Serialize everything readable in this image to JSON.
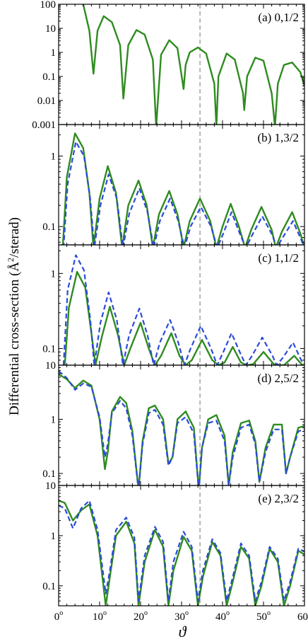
{
  "figure": {
    "ylabel_main": "Differential cross-section (Å",
    "ylabel_sup": "2",
    "ylabel_tail": "/sterad)",
    "xlabel": "ϑ",
    "vline_x": 34.5,
    "x_ticks": [
      {
        "v": 0,
        "label": "0"
      },
      {
        "v": 10,
        "label": "10"
      },
      {
        "v": 20,
        "label": "20"
      },
      {
        "v": 30,
        "label": "30"
      },
      {
        "v": 40,
        "label": "40"
      },
      {
        "v": 50,
        "label": "50"
      },
      {
        "v": 60,
        "label": "60"
      }
    ],
    "x_tick_suffix": "o",
    "colors": {
      "solid": "#2e8b1f",
      "dashed": "#2c4bd8",
      "vline": "#8a8a8a",
      "axis": "#000000"
    }
  },
  "chart_data": [
    {
      "type": "line",
      "panel": "(a) 0,1/2",
      "xlim": [
        0,
        60
      ],
      "ylim": [
        0.001,
        100
      ],
      "yscale": "log",
      "ytick_labels": [
        "100",
        "10",
        "1",
        "0.1",
        "0.01",
        "0.001"
      ],
      "series": [
        {
          "style": "solid",
          "x": [
            6,
            7.5,
            8.5,
            9.5,
            11,
            13,
            15,
            15.8,
            17,
            19,
            21,
            23,
            23.8,
            25,
            27,
            29,
            30.5,
            31,
            32,
            34,
            36,
            38,
            38.5,
            39,
            41,
            43,
            45,
            45.3,
            46,
            48,
            50,
            52,
            52.8,
            53.5,
            55,
            57,
            59,
            60
          ],
          "y": [
            100,
            8,
            0.13,
            8,
            32,
            18,
            2,
            0.012,
            2,
            8.5,
            5.5,
            0.5,
            0.0008,
            0.8,
            3.2,
            1.5,
            0.03,
            0.3,
            1.0,
            1.6,
            0.9,
            0.05,
            0.0008,
            0.1,
            0.9,
            0.5,
            0.02,
            0.004,
            0.1,
            0.6,
            0.45,
            0.02,
            0.0008,
            0.05,
            0.3,
            0.38,
            0.15,
            0.04
          ]
        }
      ]
    },
    {
      "type": "line",
      "panel": "(b) 1,3/2",
      "xlim": [
        0,
        60
      ],
      "ylim": [
        0.055,
        2.8
      ],
      "yscale": "log",
      "ytick_labels": [
        "1",
        "0.1"
      ],
      "series": [
        {
          "style": "solid",
          "x": [
            1,
            2,
            4,
            6,
            7.5,
            8.5,
            10,
            12,
            14,
            15.5,
            17,
            19.5,
            21.5,
            23,
            24.5,
            27,
            29,
            30.5,
            32,
            34.5,
            37,
            38.5,
            40,
            42,
            44,
            45.5,
            47,
            49.5,
            52,
            53,
            54.5,
            57,
            59,
            60
          ],
          "y": [
            0.05,
            0.5,
            2.1,
            1.3,
            0.3,
            0.05,
            0.25,
            0.72,
            0.3,
            0.05,
            0.2,
            0.45,
            0.2,
            0.05,
            0.15,
            0.32,
            0.15,
            0.05,
            0.12,
            0.25,
            0.12,
            0.05,
            0.1,
            0.21,
            0.1,
            0.05,
            0.09,
            0.19,
            0.09,
            0.05,
            0.085,
            0.16,
            0.08,
            0.05
          ]
        },
        {
          "style": "dashed",
          "x": [
            1.2,
            2.2,
            4.2,
            6.2,
            7.7,
            8.7,
            10.2,
            12.2,
            14.2,
            15.7,
            17.2,
            19.7,
            21.7,
            23.2,
            24.7,
            27.2,
            29.2,
            30.7,
            32.2,
            34.7,
            37.2,
            38.7,
            40.2,
            42.2,
            44.2,
            45.7,
            47.2,
            49.7,
            52.2,
            53.2,
            54.7,
            57.2,
            59.2,
            60
          ],
          "y": [
            0.05,
            0.4,
            1.6,
            1.0,
            0.25,
            0.05,
            0.2,
            0.55,
            0.25,
            0.05,
            0.15,
            0.35,
            0.16,
            0.05,
            0.12,
            0.25,
            0.12,
            0.05,
            0.1,
            0.19,
            0.1,
            0.05,
            0.08,
            0.16,
            0.08,
            0.05,
            0.075,
            0.14,
            0.075,
            0.05,
            0.07,
            0.12,
            0.065,
            0.05
          ]
        }
      ]
    },
    {
      "type": "line",
      "panel": "(c) 1,1/2",
      "xlim": [
        0,
        60
      ],
      "ylim": [
        0.06,
        2.4
      ],
      "yscale": "log",
      "ytick_labels": [
        "1",
        "0.1"
      ],
      "series": [
        {
          "style": "solid",
          "x": [
            1.5,
            2.5,
            4.5,
            6.5,
            8,
            9,
            10.5,
            12.5,
            14.5,
            16,
            17.5,
            20,
            22,
            23.5,
            25,
            27.5,
            29.5,
            31,
            32.5,
            35,
            37.5,
            39,
            40.5,
            42.5,
            44.5,
            46,
            47.5,
            50,
            52.5,
            53.5,
            55,
            57.5,
            59.5,
            60
          ],
          "y": [
            0.06,
            0.35,
            1.05,
            0.65,
            0.16,
            0.06,
            0.14,
            0.36,
            0.15,
            0.06,
            0.1,
            0.22,
            0.1,
            0.06,
            0.08,
            0.16,
            0.08,
            0.06,
            0.07,
            0.13,
            0.07,
            0.06,
            0.065,
            0.105,
            0.065,
            0.06,
            0.062,
            0.09,
            0.062,
            0.06,
            0.06,
            0.08,
            0.06,
            0.06
          ]
        },
        {
          "style": "dashed",
          "x": [
            1.2,
            2.2,
            4.2,
            6.2,
            7.7,
            8.7,
            10.2,
            12.2,
            14.2,
            15.7,
            17.2,
            19.7,
            21.7,
            23.2,
            24.7,
            27.2,
            29.2,
            30.7,
            32.2,
            34.7,
            37.2,
            38.7,
            40.2,
            42.2,
            44.2,
            45.7,
            47.2,
            49.7,
            52.2,
            53.2,
            54.7,
            57.2,
            59.2,
            60
          ],
          "y": [
            0.06,
            0.6,
            1.75,
            1.1,
            0.25,
            0.06,
            0.22,
            0.56,
            0.24,
            0.06,
            0.15,
            0.34,
            0.15,
            0.06,
            0.12,
            0.24,
            0.12,
            0.06,
            0.1,
            0.2,
            0.1,
            0.06,
            0.09,
            0.16,
            0.09,
            0.06,
            0.08,
            0.14,
            0.08,
            0.06,
            0.075,
            0.12,
            0.07,
            0.06
          ]
        }
      ]
    },
    {
      "type": "line",
      "panel": "(d) 2,5/2",
      "xlim": [
        0,
        60
      ],
      "ylim": [
        0.06,
        10
      ],
      "yscale": "log",
      "ytick_labels": [
        "10",
        "1",
        "0.1"
      ],
      "series": [
        {
          "style": "solid",
          "x": [
            0,
            2,
            4,
            6,
            8,
            10,
            11.3,
            12,
            13,
            15,
            16.5,
            18,
            19.5,
            20.5,
            22,
            23.5,
            25.5,
            26.8,
            27.8,
            29,
            31,
            33,
            34.2,
            35,
            36.5,
            38.5,
            40.5,
            41.5,
            42.5,
            44.5,
            46.5,
            48,
            49,
            50.5,
            52.5,
            54.5,
            55.5,
            56.5,
            58.5,
            60
          ],
          "y": [
            6.8,
            5.5,
            3.8,
            5.2,
            4.2,
            1.0,
            0.12,
            0.25,
            1.4,
            2.6,
            2.0,
            0.6,
            0.05,
            0.4,
            1.6,
            1.8,
            1.0,
            0.15,
            0.2,
            1.0,
            1.4,
            0.7,
            0.05,
            0.3,
            1.0,
            1.2,
            0.5,
            0.06,
            0.25,
            0.85,
            0.95,
            0.4,
            0.07,
            0.3,
            0.8,
            0.8,
            0.1,
            0.2,
            0.7,
            0.75
          ]
        },
        {
          "style": "dashed",
          "x": [
            0,
            2,
            4,
            6,
            8,
            10,
            11.3,
            12,
            13,
            15,
            16.5,
            18,
            19.5,
            20.5,
            22,
            23.5,
            25.5,
            26.8,
            27.8,
            29,
            31,
            33,
            34.2,
            35,
            36.5,
            38.5,
            40.5,
            41.5,
            42.5,
            44.5,
            46.5,
            48,
            49,
            50.5,
            52.5,
            54.5,
            55.5,
            56.5,
            58.5,
            60
          ],
          "y": [
            7.8,
            5.8,
            3.5,
            4.6,
            4.0,
            1.1,
            0.2,
            0.35,
            1.3,
            2.2,
            1.6,
            0.5,
            0.05,
            0.35,
            1.3,
            1.5,
            0.8,
            0.14,
            0.2,
            0.85,
            1.1,
            0.55,
            0.05,
            0.3,
            0.85,
            0.95,
            0.4,
            0.06,
            0.2,
            0.7,
            0.8,
            0.35,
            0.07,
            0.25,
            0.65,
            0.65,
            0.1,
            0.2,
            0.6,
            0.65
          ]
        }
      ]
    },
    {
      "type": "line",
      "panel": "(e) 2,3/2",
      "xlim": [
        0,
        60
      ],
      "ylim": [
        0.04,
        10
      ],
      "yscale": "log",
      "ytick_labels": [
        "10",
        "1",
        "0.1"
      ],
      "series": [
        {
          "style": "solid",
          "x": [
            0,
            1.5,
            3.5,
            5.5,
            7.5,
            9.5,
            11.5,
            12.5,
            14,
            16.5,
            18.5,
            19.5,
            21,
            23.5,
            25.5,
            26.8,
            28,
            30.5,
            32.5,
            34,
            35.2,
            37.5,
            39.5,
            41,
            42.5,
            44.5,
            46.5,
            48,
            49.5,
            51.5,
            53.5,
            55,
            56.5,
            58.5,
            60
          ],
          "y": [
            5.0,
            4.5,
            2.0,
            3.2,
            4.2,
            1.0,
            0.04,
            0.15,
            1.0,
            1.9,
            0.7,
            0.04,
            0.3,
            1.3,
            0.6,
            0.04,
            0.2,
            0.95,
            0.5,
            0.04,
            0.15,
            0.75,
            0.4,
            0.04,
            0.12,
            0.6,
            0.35,
            0.04,
            0.1,
            0.55,
            0.3,
            0.04,
            0.1,
            0.5,
            0.42
          ]
        },
        {
          "style": "dashed",
          "x": [
            0,
            1.5,
            3.5,
            5.5,
            7.5,
            9.5,
            11.5,
            12.5,
            14,
            16.5,
            18.5,
            19.5,
            21,
            23.5,
            25.5,
            26.8,
            28,
            30.5,
            32.5,
            34,
            35.2,
            37.5,
            39.5,
            41,
            42.5,
            44.5,
            46.5,
            48,
            49.5,
            51.5,
            53.5,
            55,
            56.5,
            58.5,
            60
          ],
          "y": [
            4.0,
            3.5,
            1.4,
            3.5,
            5.0,
            1.3,
            0.07,
            0.2,
            1.3,
            2.3,
            0.9,
            0.05,
            0.4,
            1.5,
            0.75,
            0.05,
            0.3,
            1.2,
            0.6,
            0.05,
            0.2,
            0.85,
            0.45,
            0.05,
            0.15,
            0.7,
            0.4,
            0.05,
            0.12,
            0.6,
            0.35,
            0.05,
            0.12,
            0.55,
            0.48
          ]
        }
      ]
    }
  ]
}
